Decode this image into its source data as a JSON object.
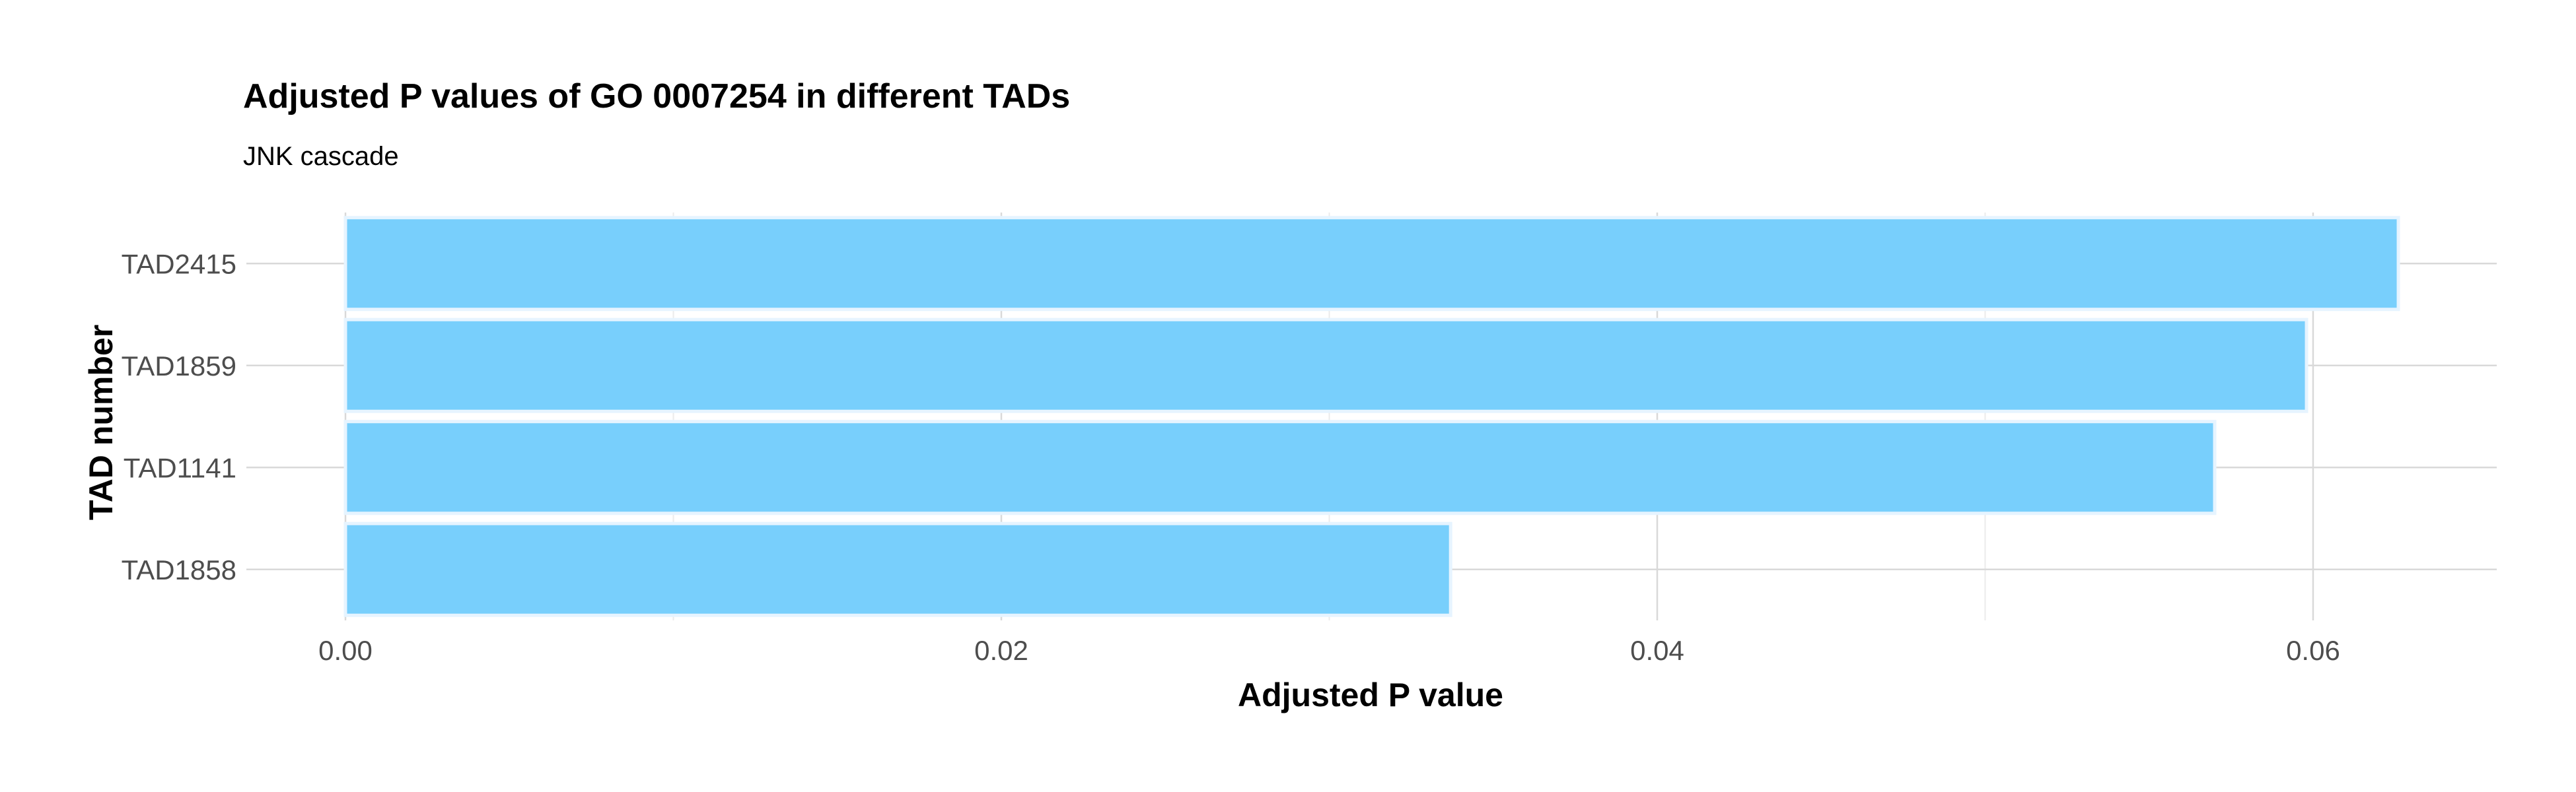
{
  "chart_data": {
    "type": "bar",
    "orientation": "horizontal",
    "title": "Adjusted P values of GO 0007254 in different TADs",
    "subtitle": "JNK cascade",
    "xlabel": "Adjusted P value",
    "ylabel": "TAD number",
    "categories": [
      "TAD2415",
      "TAD1859",
      "TAD1141",
      "TAD1858"
    ],
    "values": [
      0.0626,
      0.0598,
      0.057,
      0.0337
    ],
    "xlim": [
      0.0,
      0.0656
    ],
    "x_ticks": [
      0.0,
      0.02,
      0.04,
      0.06
    ],
    "x_tick_labels": [
      "0.00",
      "0.02",
      "0.04",
      "0.06"
    ],
    "grid": true,
    "bar_color": "#75CEFC"
  }
}
